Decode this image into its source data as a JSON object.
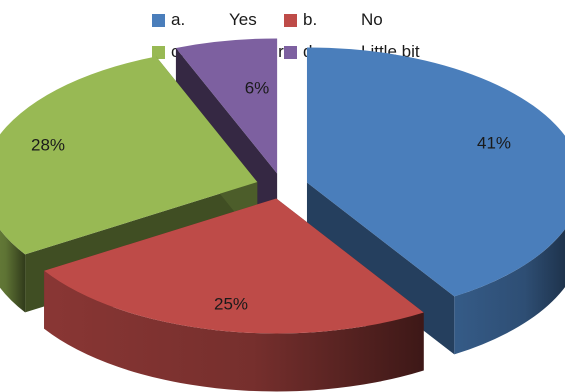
{
  "chart_data": {
    "type": "pie",
    "style": "3d-exploded",
    "legend_position": "top",
    "slices": [
      {
        "letter": "a.",
        "label": "Yes",
        "value": 41,
        "display": "41%",
        "color": "#4a7ebb"
      },
      {
        "letter": "b.",
        "label": "No",
        "value": 25,
        "display": "25%",
        "color": "#be4b48"
      },
      {
        "letter": "c.",
        "label": "Not sure",
        "value": 28,
        "display": "28%",
        "color": "#98b954"
      },
      {
        "letter": "d.",
        "label": "Little bit",
        "value": 6,
        "display": "6%",
        "color": "#7d60a0"
      }
    ]
  }
}
